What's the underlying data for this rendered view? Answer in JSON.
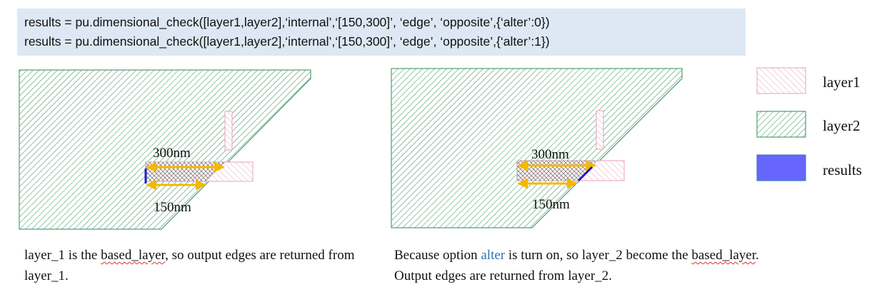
{
  "code": {
    "line1": "results = pu.dimensional_check([layer1,layer2],‘internal’,‘[150,300]’, ‘edge’, ‘opposite’,{‘alter’:0})",
    "line2": "results = pu.dimensional_check([layer1,layer2],‘internal’,‘[150,300]’, ‘edge’, ‘opposite’,{‘alter’:1})"
  },
  "diagram_left": {
    "label_top": "300nm",
    "label_bottom": "150nm"
  },
  "diagram_right": {
    "label_top": "300nm",
    "label_bottom": "150nm"
  },
  "caption_left": {
    "part1": "layer_1 is the ",
    "based": "based_layer",
    "part2": ", so output edges are returned from layer_1."
  },
  "caption_right": {
    "part1": "Because option ",
    "alter": "alter",
    "part2": " is turn on, so layer_2 become the ",
    "based": "based_layer",
    "part3": ". Output edges are returned from layer_2."
  },
  "legend": {
    "layer1": "layer1",
    "layer2": "layer2",
    "results": "results"
  },
  "colors": {
    "layer1": "#e8a0b8",
    "layer2": "#2e8b57",
    "results": "#6666ff",
    "arrow": "#f5b800",
    "code_bg": "#dde8f4"
  }
}
